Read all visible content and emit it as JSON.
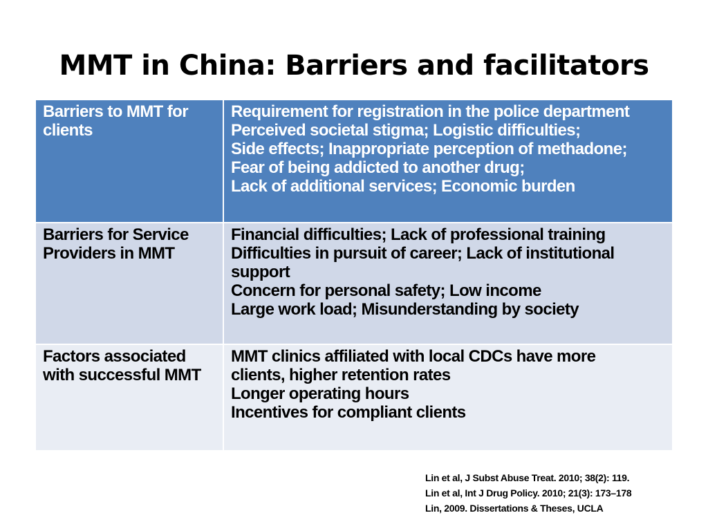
{
  "title": "MMT in China: Barriers and facilitators",
  "table": {
    "rows": [
      {
        "label_lines": [
          "Barriers to MMT for",
          "clients"
        ],
        "content_lines": [
          "Requirement for registration in the police department",
          "Perceived societal stigma;  Logistic difficulties;",
          "Side effects; Inappropriate perception of methadone;",
          "Fear of being addicted to another drug;",
          "Lack of additional services;  Economic burden"
        ]
      },
      {
        "label_lines": [
          "Barriers for Service",
          "Providers in MMT"
        ],
        "content_lines": [
          "Financial difficulties; Lack of professional training",
          "Difficulties in pursuit of career; Lack of institutional",
          "support",
          "Concern for personal safety; Low income",
          "Large work load; Misunderstanding by society"
        ]
      },
      {
        "label_lines": [
          "Factors associated",
          "with successful MMT"
        ],
        "content_lines": [
          "MMT clinics affiliated with local CDCs have more",
          "clients, higher retention rates",
          "Longer operating hours",
          "Incentives for compliant clients"
        ]
      }
    ]
  },
  "references": [
    "Lin et al, J Subst Abuse Treat. 2010; 38(2): 119.",
    "Lin et al, Int J Drug Policy. 2010; 21(3): 173–178",
    "Lin, 2009. Dissertations & Theses, UCLA"
  ],
  "colors": {
    "header_row": "#4f81bd",
    "row_band_1": "#d0d8e8",
    "row_band_2": "#e9edf4"
  }
}
